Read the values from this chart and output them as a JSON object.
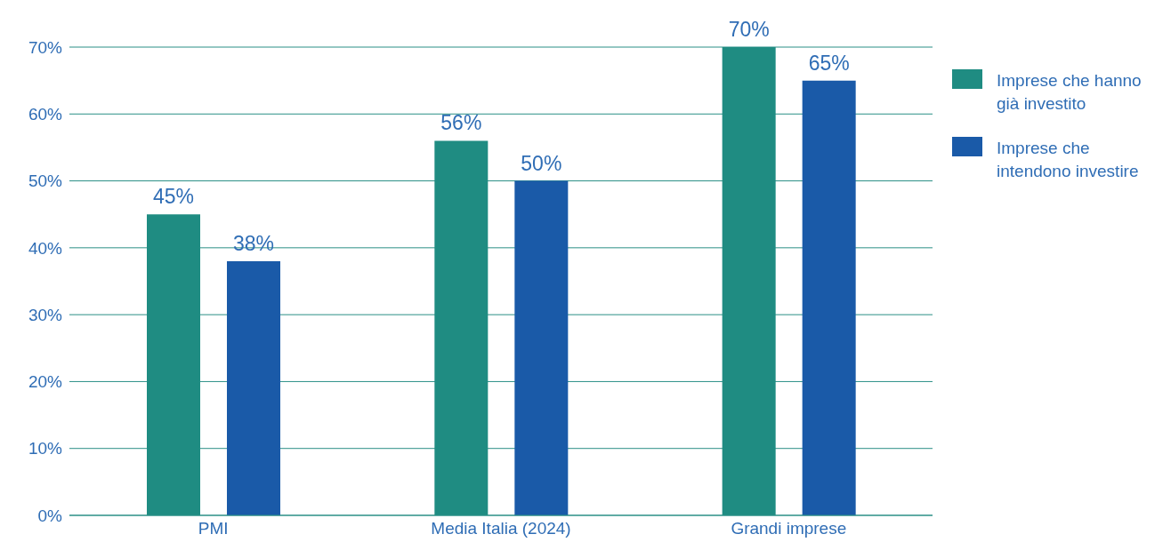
{
  "chart_data": {
    "type": "bar",
    "categories": [
      "PMI",
      "Media Italia (2024)",
      "Grandi imprese"
    ],
    "series": [
      {
        "name": "Imprese che hanno già investito",
        "color": "#1f8c82",
        "values": [
          45,
          56,
          70
        ],
        "value_labels": [
          "45%",
          "56%",
          "70%"
        ]
      },
      {
        "name": "Imprese che intendono investire",
        "color": "#1a5aa8",
        "values": [
          38,
          50,
          65
        ],
        "value_labels": [
          "38%",
          "50%",
          "65%"
        ]
      }
    ],
    "ylim": [
      0,
      70
    ],
    "yticks": [
      {
        "value": 0,
        "label": "0%"
      },
      {
        "value": 10,
        "label": "10%"
      },
      {
        "value": 20,
        "label": "20%"
      },
      {
        "value": 30,
        "label": "30%"
      },
      {
        "value": 40,
        "label": "40%"
      },
      {
        "value": 50,
        "label": "50%"
      },
      {
        "value": 60,
        "label": "60%"
      },
      {
        "value": 70,
        "label": "70%"
      }
    ],
    "grid": "y",
    "legend": "top right"
  }
}
